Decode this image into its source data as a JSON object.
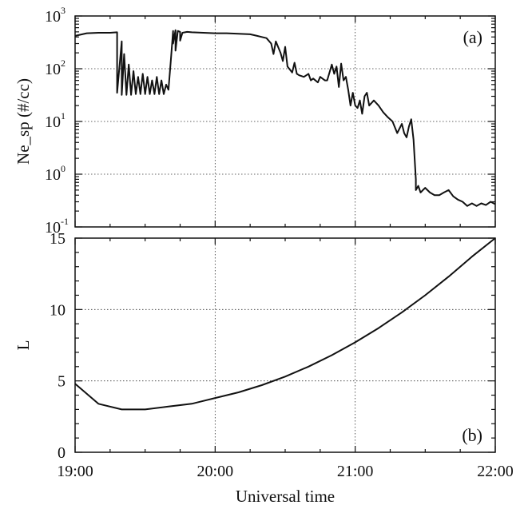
{
  "chart_data": [
    {
      "type": "line",
      "panel_tag": "(a)",
      "xlabel": "Universal time",
      "ylabel": "Ne_sp (#/cc)",
      "yscale": "log",
      "ylim": [
        0.1,
        1000
      ],
      "xlim": [
        "19:00",
        "22:00"
      ],
      "grid": true,
      "xticks": [
        "19:00",
        "20:00",
        "21:00",
        "22:00"
      ],
      "yticks": [
        {
          "base": "10",
          "exp": "-1",
          "value": 0.1
        },
        {
          "base": "10",
          "exp": "0",
          "value": 1
        },
        {
          "base": "10",
          "exp": "1",
          "value": 10
        },
        {
          "base": "10",
          "exp": "2",
          "value": 100
        },
        {
          "base": "10",
          "exp": "3",
          "value": 1000
        }
      ],
      "x": [
        "19:00",
        "19:05",
        "19:10",
        "19:15",
        "19:18",
        "19:18",
        "19:20",
        "19:20",
        "19:21",
        "19:22",
        "19:23",
        "19:24",
        "19:25",
        "19:26",
        "19:27",
        "19:28",
        "19:29",
        "19:30",
        "19:31",
        "19:32",
        "19:33",
        "19:34",
        "19:35",
        "19:36",
        "19:37",
        "19:38",
        "19:39",
        "19:40",
        "19:41",
        "19:42",
        "19:42",
        "19:43",
        "19:43",
        "19:44",
        "19:45",
        "19:45",
        "19:46",
        "19:48",
        "19:50",
        "19:55",
        "20:00",
        "20:05",
        "20:10",
        "20:15",
        "20:18",
        "20:20",
        "20:22",
        "20:24",
        "20:25",
        "20:26",
        "20:28",
        "20:29",
        "20:30",
        "20:31",
        "20:33",
        "20:34",
        "20:35",
        "20:36",
        "20:38",
        "20:40",
        "20:41",
        "20:42",
        "20:44",
        "20:45",
        "20:47",
        "20:48",
        "20:50",
        "20:51",
        "20:52",
        "20:53",
        "20:54",
        "20:55",
        "20:56",
        "20:57",
        "20:58",
        "20:59",
        "21:00",
        "21:01",
        "21:02",
        "21:03",
        "21:04",
        "21:05",
        "21:06",
        "21:08",
        "21:10",
        "21:12",
        "21:14",
        "21:16",
        "21:18",
        "21:20",
        "21:21",
        "21:22",
        "21:23",
        "21:24",
        "21:25",
        "21:26",
        "21:26",
        "21:27",
        "21:28",
        "21:29",
        "21:30",
        "21:32",
        "21:34",
        "21:36",
        "21:38",
        "21:40",
        "21:42",
        "21:44",
        "21:46",
        "21:48",
        "21:50",
        "21:52",
        "21:54",
        "21:56",
        "21:58",
        "22:00"
      ],
      "y": [
        420,
        470,
        480,
        480,
        490,
        35,
        330,
        32,
        190,
        32,
        120,
        32,
        90,
        33,
        70,
        33,
        80,
        33,
        70,
        33,
        60,
        33,
        70,
        33,
        60,
        33,
        50,
        40,
        140,
        520,
        300,
        540,
        220,
        520,
        500,
        340,
        480,
        500,
        490,
        480,
        470,
        470,
        460,
        450,
        420,
        400,
        380,
        300,
        190,
        330,
        200,
        140,
        260,
        110,
        85,
        130,
        80,
        75,
        70,
        80,
        60,
        65,
        55,
        70,
        60,
        60,
        120,
        80,
        110,
        45,
        125,
        60,
        70,
        40,
        20,
        35,
        20,
        18,
        25,
        14,
        30,
        35,
        20,
        25,
        20,
        15,
        12,
        10,
        6,
        9,
        6,
        5,
        8,
        11,
        4.5,
        0.8,
        0.5,
        0.6,
        0.45,
        0.5,
        0.55,
        0.45,
        0.4,
        0.4,
        0.45,
        0.5,
        0.38,
        0.33,
        0.3,
        0.25,
        0.28,
        0.25,
        0.28,
        0.26,
        0.3,
        0.27
      ]
    },
    {
      "type": "line",
      "panel_tag": "(b)",
      "xlabel": "Universal time",
      "ylabel": "L",
      "ylim": [
        0,
        15
      ],
      "xlim": [
        "19:00",
        "22:00"
      ],
      "grid": true,
      "xticks": [
        "19:00",
        "20:00",
        "21:00",
        "22:00"
      ],
      "yticks": [
        "0",
        "5",
        "10",
        "15"
      ],
      "x": [
        "19:00",
        "19:10",
        "19:20",
        "19:30",
        "19:40",
        "19:50",
        "20:00",
        "20:10",
        "20:20",
        "20:30",
        "20:40",
        "20:50",
        "21:00",
        "21:10",
        "21:20",
        "21:30",
        "21:40",
        "21:50",
        "22:00"
      ],
      "y": [
        4.8,
        3.4,
        3.0,
        3.0,
        3.2,
        3.4,
        3.8,
        4.2,
        4.7,
        5.3,
        6.0,
        6.8,
        7.7,
        8.7,
        9.8,
        11.0,
        12.3,
        13.7,
        15.2
      ]
    }
  ]
}
